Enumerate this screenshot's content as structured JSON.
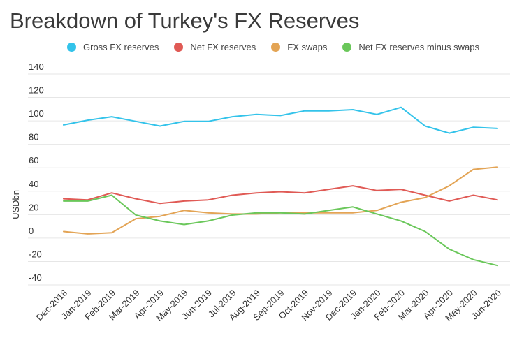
{
  "chart_data": {
    "type": "line",
    "title": "Breakdown of Turkey's FX Reserves",
    "ylabel": "USDbn",
    "xlabel": "",
    "ylim": [
      -40,
      140
    ],
    "yticks": [
      140,
      120,
      100,
      80,
      60,
      40,
      20,
      0,
      -20,
      -40
    ],
    "grid": true,
    "legend_position": "top",
    "categories": [
      "Dec-2018",
      "Jan-2019",
      "Feb-2019",
      "Mar-2019",
      "Apr-2019",
      "May-2019",
      "Jun-2019",
      "Jul-2019",
      "Aug-2019",
      "Sep-2019",
      "Oct-2019",
      "Nov-2019",
      "Dec-2019",
      "Jan-2020",
      "Feb-2020",
      "Mar-2020",
      "Apr-2020",
      "May-2020",
      "Jun-2020"
    ],
    "series": [
      {
        "name": "Gross FX reserves",
        "color": "#33c3ea",
        "values": [
          93,
          97,
          100,
          96,
          92,
          96,
          96,
          100,
          102,
          101,
          105,
          105,
          106,
          102,
          108,
          92,
          86,
          91,
          90
        ]
      },
      {
        "name": "Net FX reserves",
        "color": "#e05a55",
        "values": [
          30,
          29,
          35,
          30,
          26,
          28,
          29,
          33,
          35,
          36,
          35,
          38,
          41,
          37,
          38,
          33,
          28,
          33,
          29
        ]
      },
      {
        "name": "FX swaps",
        "color": "#e3a455",
        "values": [
          2,
          0,
          1,
          13,
          15,
          20,
          18,
          17,
          17,
          18,
          18,
          18,
          18,
          20,
          27,
          31,
          41,
          55,
          57
        ]
      },
      {
        "name": "Net FX reserves minus swaps",
        "color": "#6ac75a",
        "values": [
          28,
          28,
          33,
          16,
          11,
          8,
          11,
          16,
          18,
          18,
          17,
          20,
          23,
          17,
          11,
          2,
          -13,
          -22,
          -27
        ]
      }
    ]
  }
}
